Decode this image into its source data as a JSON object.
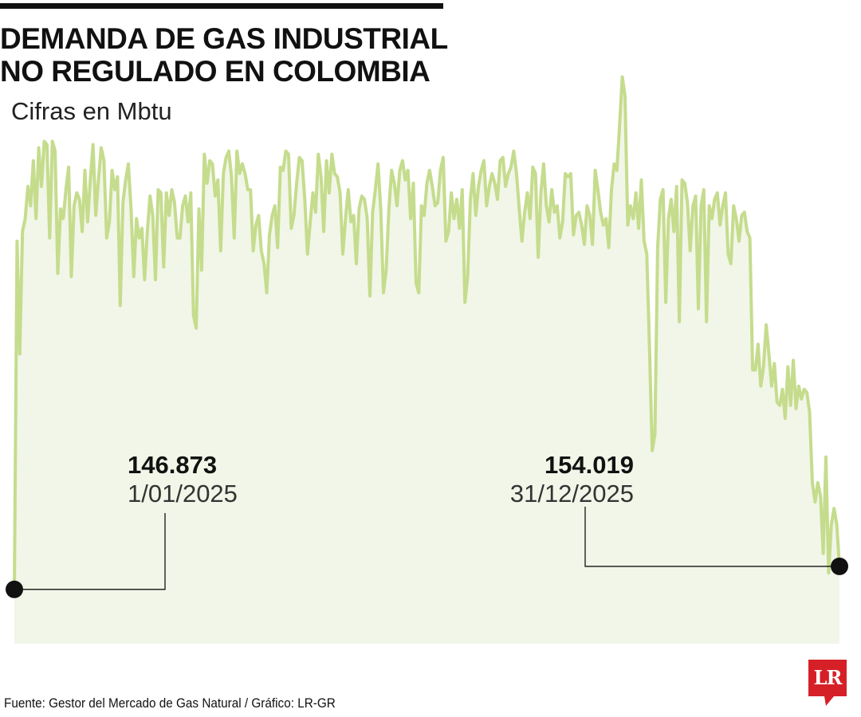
{
  "header": {
    "title_line1": "DEMANDA DE GAS INDUSTRIAL",
    "title_line2": "NO REGULADO EN COLOMBIA",
    "subtitle": "Cifras en Mbtu"
  },
  "footer": {
    "source": "Fuente: Gestor del Mercado de Gas Natural / Gráfico: LR-GR",
    "logo_text": "LR"
  },
  "colors": {
    "line": "#c5dc8d",
    "area": "#f1f6e8",
    "marker": "#111111",
    "logo": "#d62027"
  },
  "chart_data": {
    "type": "area",
    "title": "DEMANDA DE GAS INDUSTRIAL NO REGULADO EN COLOMBIA",
    "subtitle": "Cifras en Mbtu",
    "x_range": [
      "1/01/2025",
      "31/12/2025"
    ],
    "y_range": [
      130000,
      320000
    ],
    "grid": false,
    "legend": "none",
    "annotations": [
      {
        "value_label": "146.873",
        "date_label": "1/01/2025",
        "x": "2025-01-01",
        "y": 146873
      },
      {
        "value_label": "154.019",
        "date_label": "31/12/2025",
        "x": "2025-12-31",
        "y": 154019
      }
    ],
    "series": [
      {
        "values": [
          146873,
          255000,
          220000,
          258000,
          262000,
          272000,
          266000,
          280000,
          262000,
          284000,
          272000,
          286000,
          285000,
          256000,
          286000,
          283000,
          245000,
          265000,
          262000,
          271000,
          278000,
          244000,
          266000,
          270000,
          268000,
          258000,
          277000,
          261000,
          274000,
          285000,
          263000,
          274000,
          284000,
          280000,
          256000,
          261000,
          277000,
          271000,
          275000,
          235000,
          267000,
          274000,
          279000,
          265000,
          244000,
          262000,
          256000,
          259000,
          243000,
          258000,
          269000,
          263000,
          243000,
          271000,
          270000,
          247000,
          270000,
          263000,
          271000,
          267000,
          256000,
          256000,
          266000,
          269000,
          261000,
          270000,
          232000,
          228000,
          265000,
          246000,
          282000,
          273000,
          280000,
          279000,
          269000,
          274000,
          252000,
          276000,
          281000,
          283000,
          275000,
          256000,
          283000,
          276000,
          279000,
          276000,
          271000,
          271000,
          252000,
          260000,
          263000,
          252000,
          248000,
          239000,
          257000,
          263000,
          266000,
          253000,
          278000,
          277000,
          283000,
          282000,
          259000,
          263000,
          273000,
          281000,
          280000,
          268000,
          251000,
          261000,
          270000,
          264000,
          282000,
          275000,
          258000,
          280000,
          270000,
          282000,
          276000,
          275000,
          270000,
          251000,
          262000,
          271000,
          261000,
          263000,
          248000,
          265000,
          269000,
          268000,
          262000,
          238000,
          264000,
          271000,
          279000,
          265000,
          239000,
          246000,
          265000,
          277000,
          273000,
          266000,
          277000,
          280000,
          274000,
          277000,
          262000,
          273000,
          242000,
          239000,
          266000,
          263000,
          273000,
          277000,
          272000,
          266000,
          267000,
          277000,
          281000,
          255000,
          258000,
          270000,
          262000,
          268000,
          259000,
          271000,
          236000,
          244000,
          268000,
          276000,
          263000,
          272000,
          277000,
          280000,
          266000,
          272000,
          276000,
          273000,
          268000,
          280000,
          281000,
          272000,
          276000,
          278000,
          283000,
          276000,
          265000,
          255000,
          264000,
          270000,
          262000,
          278000,
          276000,
          250000,
          270000,
          279000,
          266000,
          261000,
          271000,
          264000,
          266000,
          256000,
          261000,
          276000,
          275000,
          276000,
          257000,
          263000,
          264000,
          260000,
          254000,
          266000,
          263000,
          254000,
          277000,
          271000,
          264000,
          260000,
          262000,
          253000,
          271000,
          279000,
          277000,
          291000,
          306000,
          300000,
          260000,
          266000,
          262000,
          270000,
          259000,
          274000,
          255000,
          251000,
          222000,
          190000,
          195000,
          253000,
          268000,
          271000,
          236000,
          262000,
          268000,
          258000,
          272000,
          230000,
          274000,
          273000,
          267000,
          252000,
          266000,
          269000,
          234000,
          266000,
          271000,
          230000,
          266000,
          262000,
          268000,
          270000,
          260000,
          266000,
          270000,
          251000,
          248000,
          266000,
          262000,
          255000,
          263000,
          264000,
          258000,
          256000,
          215000,
          215000,
          223000,
          210000,
          216000,
          229000,
          220000,
          210000,
          217000,
          205000,
          204000,
          209000,
          200000,
          216000,
          204000,
          218000,
          203000,
          210000,
          206000,
          209000,
          208000,
          202000,
          180000,
          174000,
          180000,
          176000,
          158000,
          188000,
          152000,
          167000,
          172000,
          167000,
          154019
        ]
      }
    ]
  }
}
